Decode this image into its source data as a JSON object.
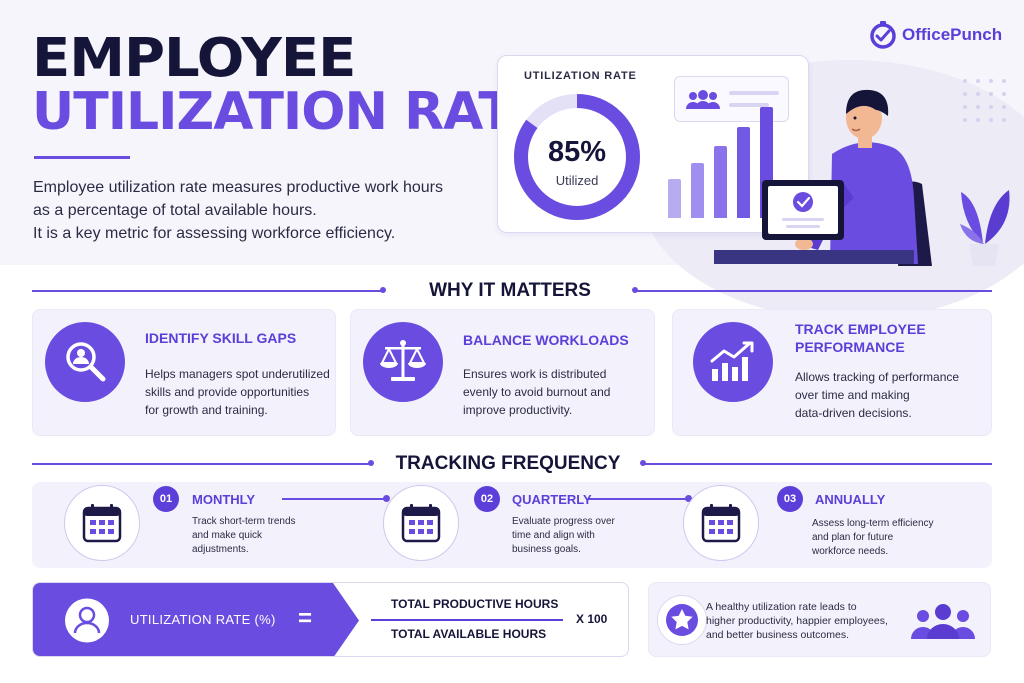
{
  "hero": {
    "title_line1": "EMPLOYEE",
    "title_line2": "UTILIZATION RATE",
    "desc_line1": "Employee utilization rate measures productive work hours",
    "desc_line2": "as a percentage of total available hours.",
    "desc_line3": "It is a key metric for assessing workforce efficiency."
  },
  "brand": {
    "name": "OfficePunch",
    "icon": "clock-check-icon",
    "color": "#5b3fd8"
  },
  "metric_card": {
    "label": "UTILIZATION RATE",
    "value": "85%",
    "sub": "Utilized",
    "fraction": 0.85,
    "bars": [
      0.3,
      0.42,
      0.55,
      0.7,
      0.85
    ]
  },
  "why": {
    "title": "WHY IT MATTERS",
    "items": [
      {
        "title": "IDENTIFY SKILL GAPS",
        "icon": "magnifier-person-icon",
        "text": [
          "Helps managers spot underutilized",
          "skills and provide opportunities",
          "for growth and training."
        ]
      },
      {
        "title": "BALANCE WORKLOADS",
        "icon": "scale-icon",
        "text": [
          "Ensures work is distributed",
          "evenly to avoid burnout and",
          "improve productivity."
        ]
      },
      {
        "title_line1": "TRACK EMPLOYEE",
        "title_line2": "PERFORMANCE",
        "icon": "trend-chart-icon",
        "text": [
          "Allows tracking of performance",
          "over time and making",
          "data-driven decisions."
        ]
      }
    ]
  },
  "tracking": {
    "title": "TRACKING FREQUENCY",
    "items": [
      {
        "num": "01",
        "title": "MONTHLY",
        "icon": "calendar-icon",
        "text": [
          "Track short-term trends",
          "and make quick",
          "adjustments."
        ]
      },
      {
        "num": "02",
        "title": "QUARTERLY",
        "icon": "calendar-icon",
        "text": [
          "Evaluate progress over",
          "time and align with",
          "business goals."
        ]
      },
      {
        "num": "03",
        "title": "ANNUALLY",
        "icon": "calendar-icon",
        "text": [
          "Assess long-term efficiency",
          "and plan for future",
          "workforce needs."
        ]
      }
    ]
  },
  "formula": {
    "label": "UTILIZATION RATE (%)",
    "equals": "=",
    "numerator": "TOTAL PRODUCTIVE HOURS",
    "denominator": "TOTAL AVAILABLE HOURS",
    "multiplier": "X 100"
  },
  "note": {
    "line1": "A healthy utilization rate leads to",
    "line2": "higher productivity, happier employees,",
    "line3": "and better business outcomes.",
    "icon": "star-icon",
    "people_icon": "team-icon"
  },
  "colors": {
    "accent": "#6a4ce0",
    "dark": "#15153a",
    "light_bg": "#f3f1fb"
  }
}
